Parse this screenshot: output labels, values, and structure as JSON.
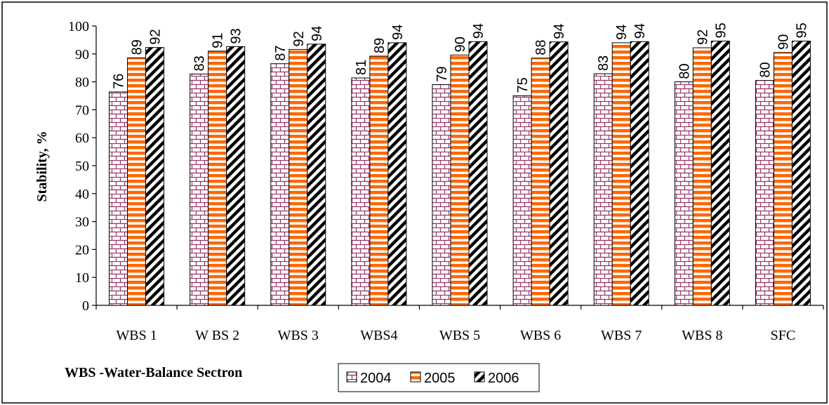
{
  "chart_data": {
    "type": "bar",
    "title": "",
    "xlabel": "",
    "ylabel": "Stability, %",
    "ylim": [
      0,
      100
    ],
    "yticks": [
      0,
      10,
      20,
      30,
      40,
      50,
      60,
      70,
      80,
      90,
      100
    ],
    "grid": false,
    "legend_position": "bottom-center",
    "categories": [
      "WBS 1",
      "W BS 2",
      "WBS 3",
      "WBS4",
      "WBS 5",
      "WBS 6",
      "WBS 7",
      "WBS 8",
      "SFC"
    ],
    "series": [
      {
        "name": "2004",
        "pattern": "brick",
        "color": "#993366",
        "values": [
          76.4,
          82.8,
          86.5,
          81.4,
          79.0,
          75.0,
          82.9,
          80.0,
          80.5
        ],
        "labels": [
          "76",
          "83",
          "87",
          "81",
          "79",
          "75",
          "83",
          "80",
          "80"
        ]
      },
      {
        "name": "2005",
        "pattern": "horizontal-stripes",
        "color": "#ff6600",
        "values": [
          88.6,
          91.0,
          91.6,
          89.2,
          89.6,
          88.5,
          94.0,
          92.2,
          90.5
        ],
        "labels": [
          "89",
          "91",
          "92",
          "89",
          "90",
          "88",
          "94",
          "92",
          "90"
        ]
      },
      {
        "name": "2006",
        "pattern": "diagonal-hatch",
        "color": "#000000",
        "values": [
          92.3,
          92.6,
          93.5,
          94.0,
          94.4,
          94.3,
          94.4,
          94.6,
          94.6
        ],
        "labels": [
          "92",
          "93",
          "94",
          "94",
          "94",
          "94",
          "94",
          "95",
          "95"
        ]
      }
    ],
    "annotation": "WBS -Water-Balance Sectron"
  }
}
